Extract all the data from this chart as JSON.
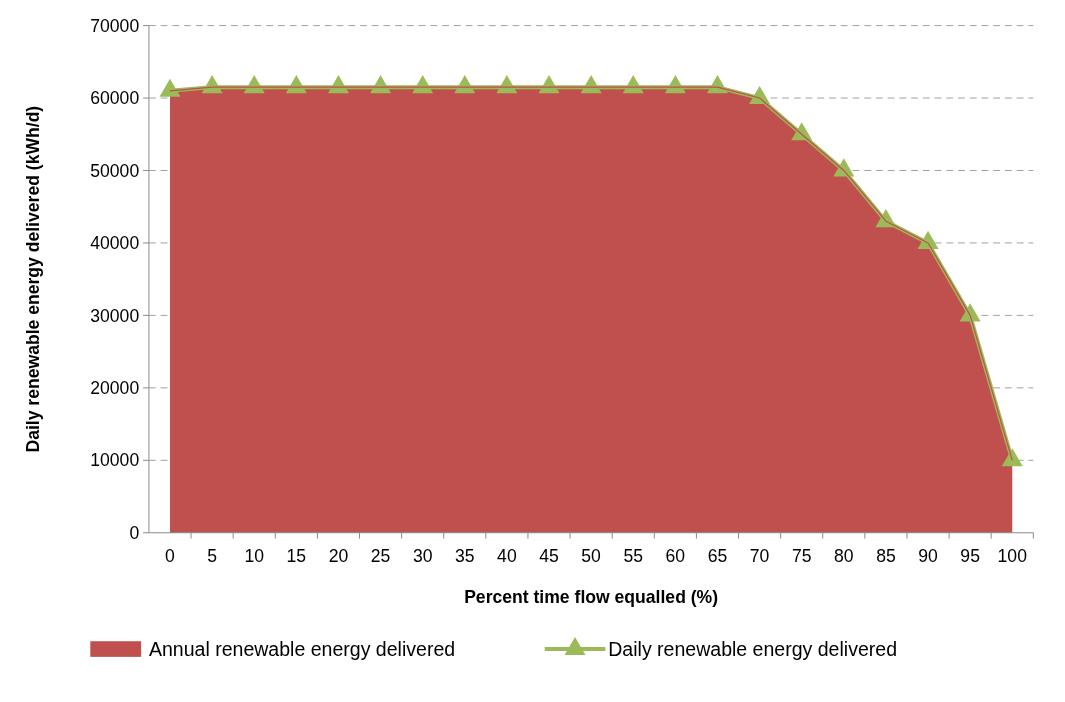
{
  "chart_data": {
    "type": "area",
    "xlabel": "Percent time flow equalled (%)",
    "ylabel": "Daily renewable energy delivered (kWh/d)",
    "categories": [
      "0",
      "5",
      "10",
      "15",
      "20",
      "25",
      "30",
      "35",
      "40",
      "45",
      "50",
      "55",
      "60",
      "65",
      "70",
      "75",
      "80",
      "85",
      "90",
      "95",
      "100"
    ],
    "series": [
      {
        "name": "Annual renewable energy delivered",
        "color": "#c0504d",
        "values": [
          61000,
          61500,
          61500,
          61500,
          61500,
          61500,
          61500,
          61500,
          61500,
          61500,
          61500,
          61500,
          61500,
          61500,
          60000,
          55000,
          50000,
          43000,
          40000,
          30000,
          10000
        ]
      },
      {
        "name": "Daily renewable energy delivered",
        "type": "line",
        "color": "#9bbb59",
        "marker": "triangle",
        "values": [
          61000,
          61500,
          61500,
          61500,
          61500,
          61500,
          61500,
          61500,
          61500,
          61500,
          61500,
          61500,
          61500,
          61500,
          60000,
          55000,
          50000,
          43000,
          40000,
          30000,
          10000
        ]
      }
    ],
    "ylim": [
      0,
      70000
    ],
    "yticks": [
      0,
      10000,
      20000,
      30000,
      40000,
      50000,
      60000,
      70000
    ],
    "grid": "y",
    "legend": "bottom"
  }
}
